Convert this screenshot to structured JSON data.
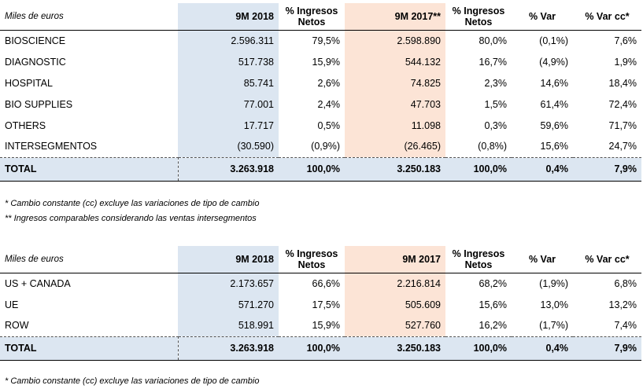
{
  "table1": {
    "unit": "Miles de euros",
    "headers": [
      "9M 2018",
      "% Ingresos Netos",
      "9M 2017**",
      "% Ingresos Netos",
      "% Var",
      "% Var cc*"
    ],
    "rows": [
      {
        "label": "BIOSCIENCE",
        "v": [
          "2.596.311",
          "79,5%",
          "2.598.890",
          "80,0%",
          "(0,1%)",
          "7,6%"
        ]
      },
      {
        "label": "DIAGNOSTIC",
        "v": [
          "517.738",
          "15,9%",
          "544.132",
          "16,7%",
          "(4,9%)",
          "1,9%"
        ]
      },
      {
        "label": "HOSPITAL",
        "v": [
          "85.741",
          "2,6%",
          "74.825",
          "2,3%",
          "14,6%",
          "18,4%"
        ]
      },
      {
        "label": "BIO SUPPLIES",
        "v": [
          "77.001",
          "2,4%",
          "47.703",
          "1,5%",
          "61,4%",
          "72,4%"
        ]
      },
      {
        "label": "OTHERS",
        "v": [
          "17.717",
          "0,5%",
          "11.098",
          "0,3%",
          "59,6%",
          "71,7%"
        ]
      },
      {
        "label": "INTERSEGMENTOS",
        "v": [
          "(30.590)",
          "(0,9%)",
          "(26.465)",
          "(0,8%)",
          "15,6%",
          "24,7%"
        ]
      }
    ],
    "total": {
      "label": "TOTAL",
      "v": [
        "3.263.918",
        "100,0%",
        "3.250.183",
        "100,0%",
        "0,4%",
        "7,9%"
      ]
    }
  },
  "notes1": [
    "* Cambio constante (cc) excluye las variaciones de tipo de cambio",
    "** Ingresos comparables considerando las ventas intersegmentos"
  ],
  "table2": {
    "unit": "Miles de euros",
    "headers": [
      "9M 2018",
      "% Ingresos Netos",
      "9M 2017",
      "% Ingresos Netos",
      "% Var",
      "% Var cc*"
    ],
    "rows": [
      {
        "label": "US + CANADA",
        "v": [
          "2.173.657",
          "66,6%",
          "2.216.814",
          "68,2%",
          "(1,9%)",
          "6,8%"
        ]
      },
      {
        "label": "UE",
        "v": [
          "571.270",
          "17,5%",
          "505.609",
          "15,6%",
          "13,0%",
          "13,2%"
        ]
      },
      {
        "label": "ROW",
        "v": [
          "518.991",
          "15,9%",
          "527.760",
          "16,2%",
          "(1,7%)",
          "7,4%"
        ]
      }
    ],
    "total": {
      "label": "TOTAL",
      "v": [
        "3.263.918",
        "100,0%",
        "3.250.183",
        "100,0%",
        "0,4%",
        "7,9%"
      ]
    }
  },
  "notes2": [
    "* Cambio constante (cc) excluye las variaciones de tipo de cambio"
  ],
  "colors": {
    "col_2018": "#dce6f1",
    "col_2017": "#fce4d6",
    "total_row": "#dce6f1"
  }
}
